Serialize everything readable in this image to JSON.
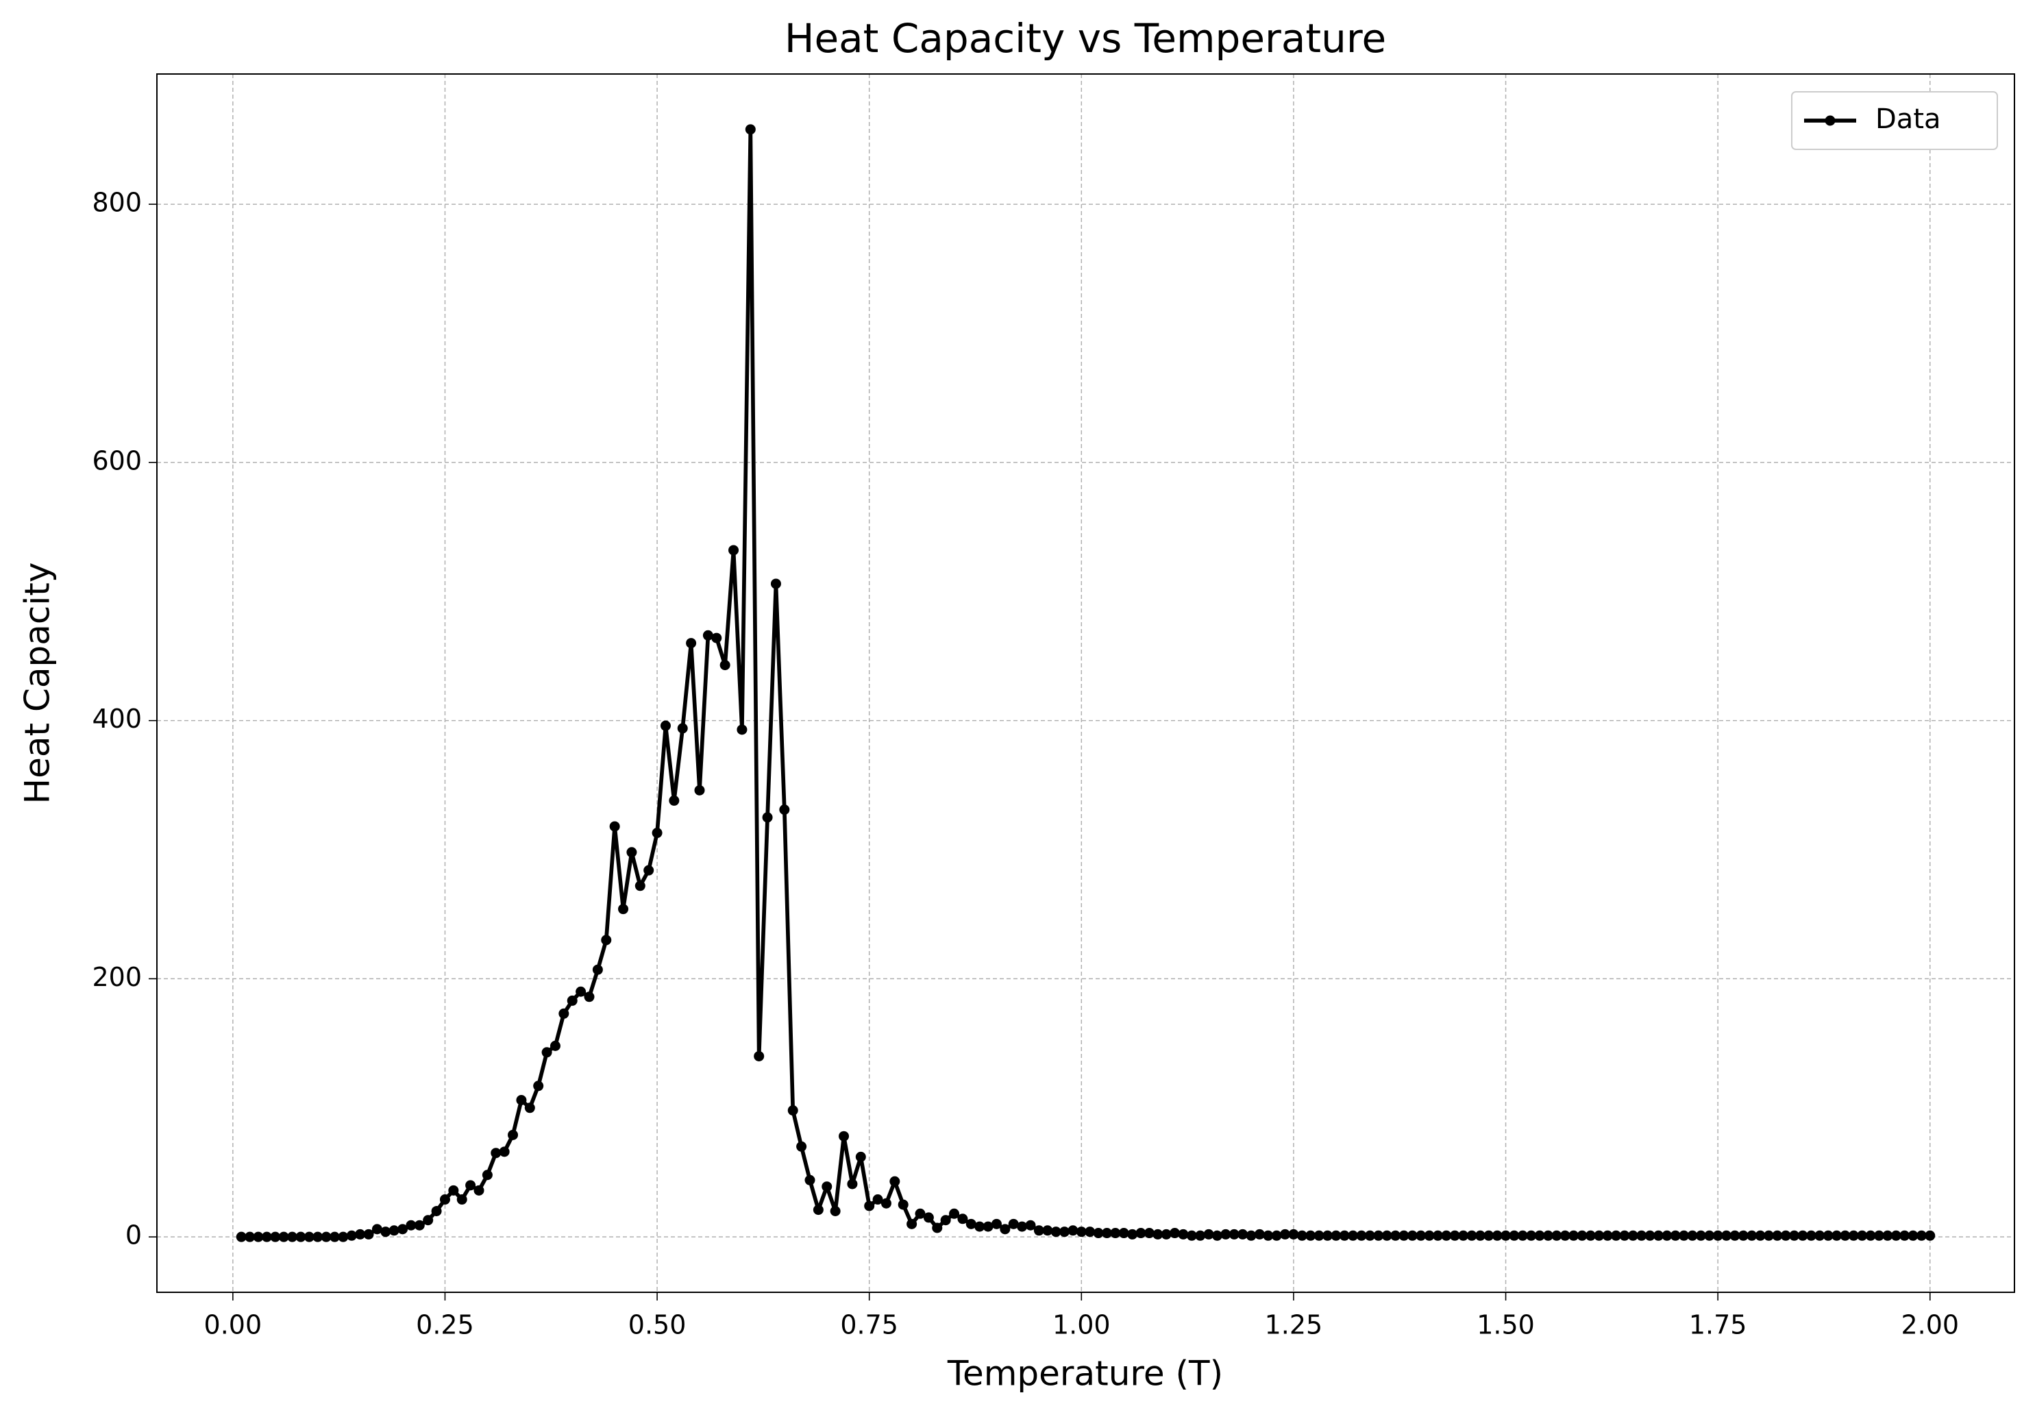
{
  "chart_data": {
    "type": "line",
    "title": "Heat Capacity vs Temperature",
    "x_label": "Temperature (T)",
    "y_label": "Heat Capacity",
    "x": [
      0.01,
      0.02,
      0.03,
      0.04,
      0.05,
      0.06,
      0.07,
      0.08,
      0.09,
      0.1,
      0.11,
      0.12,
      0.13,
      0.14,
      0.15,
      0.16,
      0.17,
      0.18,
      0.19,
      0.2,
      0.21,
      0.22,
      0.23,
      0.24,
      0.25,
      0.26,
      0.27,
      0.28,
      0.29,
      0.3,
      0.31,
      0.32,
      0.33,
      0.34,
      0.35,
      0.36,
      0.37,
      0.38,
      0.39,
      0.4,
      0.41,
      0.42,
      0.43,
      0.44,
      0.45,
      0.46,
      0.47,
      0.48,
      0.49,
      0.5,
      0.51,
      0.52,
      0.53,
      0.54,
      0.55,
      0.56,
      0.57,
      0.58,
      0.59,
      0.6,
      0.61,
      0.62,
      0.63,
      0.64,
      0.65,
      0.66,
      0.67,
      0.68,
      0.69,
      0.7,
      0.71,
      0.72,
      0.73,
      0.74,
      0.75,
      0.76,
      0.77,
      0.78,
      0.79,
      0.8,
      0.81,
      0.82,
      0.83,
      0.84,
      0.85,
      0.86,
      0.87,
      0.88,
      0.89,
      0.9,
      0.91,
      0.92,
      0.93,
      0.94,
      0.95,
      0.96,
      0.97,
      0.98,
      0.99,
      1.0,
      1.01,
      1.02,
      1.03,
      1.04,
      1.05,
      1.06,
      1.07,
      1.08,
      1.09,
      1.1,
      1.11,
      1.12,
      1.13,
      1.14,
      1.15,
      1.16,
      1.17,
      1.18,
      1.19,
      1.2,
      1.21,
      1.22,
      1.23,
      1.24,
      1.25,
      1.26,
      1.27,
      1.28,
      1.29,
      1.3,
      1.31,
      1.32,
      1.33,
      1.34,
      1.35,
      1.36,
      1.37,
      1.38,
      1.39,
      1.4,
      1.41,
      1.42,
      1.43,
      1.44,
      1.45,
      1.46,
      1.47,
      1.48,
      1.49,
      1.5,
      1.51,
      1.52,
      1.53,
      1.54,
      1.55,
      1.56,
      1.57,
      1.58,
      1.59,
      1.6,
      1.61,
      1.62,
      1.63,
      1.64,
      1.65,
      1.66,
      1.67,
      1.68,
      1.69,
      1.7,
      1.71,
      1.72,
      1.73,
      1.74,
      1.75,
      1.76,
      1.77,
      1.78,
      1.79,
      1.8,
      1.81,
      1.82,
      1.83,
      1.84,
      1.85,
      1.86,
      1.87,
      1.88,
      1.89,
      1.9,
      1.91,
      1.92,
      1.93,
      1.94,
      1.95,
      1.96,
      1.97,
      1.98,
      1.99,
      2.0
    ],
    "series": [
      {
        "name": "Data",
        "color": "#000000",
        "values": [
          0,
          0,
          0,
          0,
          0,
          0,
          0,
          0,
          0,
          0,
          0,
          0,
          0,
          1,
          2,
          2,
          6,
          4,
          5,
          6,
          9,
          9,
          13,
          20,
          29,
          36,
          29,
          40,
          36,
          48,
          65,
          66,
          79,
          106,
          100,
          117,
          143,
          148,
          173,
          183,
          190,
          186,
          207,
          230,
          318,
          254,
          298,
          272,
          284,
          313,
          396,
          338,
          394,
          460,
          346,
          466,
          464,
          443,
          532,
          393,
          858,
          140,
          325,
          506,
          331,
          98,
          70,
          44,
          21,
          39,
          20,
          78,
          41,
          62,
          24,
          29,
          26,
          43,
          25,
          10,
          18,
          15,
          7,
          13,
          18,
          14,
          10,
          8,
          8,
          10,
          6,
          10,
          8,
          9,
          5,
          5,
          4,
          4,
          5,
          4,
          4,
          3,
          3,
          3,
          3,
          2,
          3,
          3,
          2,
          2,
          3,
          2,
          1,
          1,
          2,
          1,
          2,
          2,
          2,
          1,
          2,
          1,
          1,
          2,
          2,
          1,
          1,
          1,
          1,
          1,
          1,
          1,
          1,
          1,
          1,
          1,
          1,
          1,
          1,
          1,
          1,
          1,
          1,
          1,
          1,
          1,
          1,
          1,
          1,
          1,
          1,
          1,
          1,
          1,
          1,
          1,
          1,
          1,
          1,
          1,
          1,
          1,
          1,
          1,
          1,
          1,
          1,
          1,
          1,
          1,
          1,
          1,
          1,
          1,
          1,
          1,
          1,
          1,
          1,
          1,
          1,
          1,
          1,
          1,
          1,
          1,
          1,
          1,
          1,
          1,
          1,
          1,
          1,
          1,
          1,
          1,
          1,
          1,
          1,
          1
        ]
      }
    ],
    "xlim": [
      -0.0895,
      2.0995
    ],
    "ylim": [
      -42.9,
      900.9
    ],
    "xticks": [
      {
        "value": 0,
        "label": "0.00"
      },
      {
        "value": 0.25,
        "label": "0.25"
      },
      {
        "value": 0.5,
        "label": "0.50"
      },
      {
        "value": 0.75,
        "label": "0.75"
      },
      {
        "value": 1,
        "label": "1.00"
      },
      {
        "value": 1.25,
        "label": "1.25"
      },
      {
        "value": 1.5,
        "label": "1.50"
      },
      {
        "value": 1.75,
        "label": "1.75"
      },
      {
        "value": 2,
        "label": "2.00"
      }
    ],
    "yticks": [
      0,
      200,
      400,
      600,
      800
    ],
    "grid": true,
    "legend": "upper right"
  }
}
